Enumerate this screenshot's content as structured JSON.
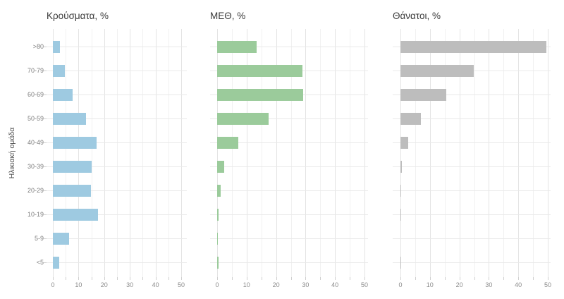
{
  "figure": {
    "y_axis_title": "Ηλικιακή ομάδα"
  },
  "chart_data": {
    "type": "bar",
    "orientation": "horizontal",
    "title": "",
    "xlabel": "",
    "ylabel": "Ηλικιακή ομάδα",
    "categories": [
      ">80",
      "70-79",
      "60-69",
      "50-59",
      "40-49",
      "30-39",
      "20-29",
      "10-19",
      "5-9",
      "<5"
    ],
    "series": [
      {
        "name": "Κρούσματα, %",
        "color": "#9ecae1",
        "values": [
          2.8,
          4.6,
          7.7,
          12.9,
          17.1,
          15.1,
          14.8,
          17.5,
          6.2,
          2.4
        ]
      },
      {
        "name": "ΜΕΘ, %",
        "color": "#9bcb9b",
        "values": [
          13.4,
          29.0,
          29.3,
          17.4,
          7.2,
          2.5,
          1.2,
          0.4,
          0.2,
          0.4
        ]
      },
      {
        "name": "Θάνατοι, %",
        "color": "#bdbdbd",
        "values": [
          49.5,
          24.9,
          15.5,
          6.9,
          2.6,
          0.5,
          0.15,
          0.15,
          0,
          0.15
        ]
      }
    ],
    "x_ticks": [
      0,
      10,
      20,
      30,
      40,
      50
    ],
    "x_minor_step": 5,
    "xlim": [
      0,
      52
    ],
    "grid": true,
    "legend": "none"
  }
}
